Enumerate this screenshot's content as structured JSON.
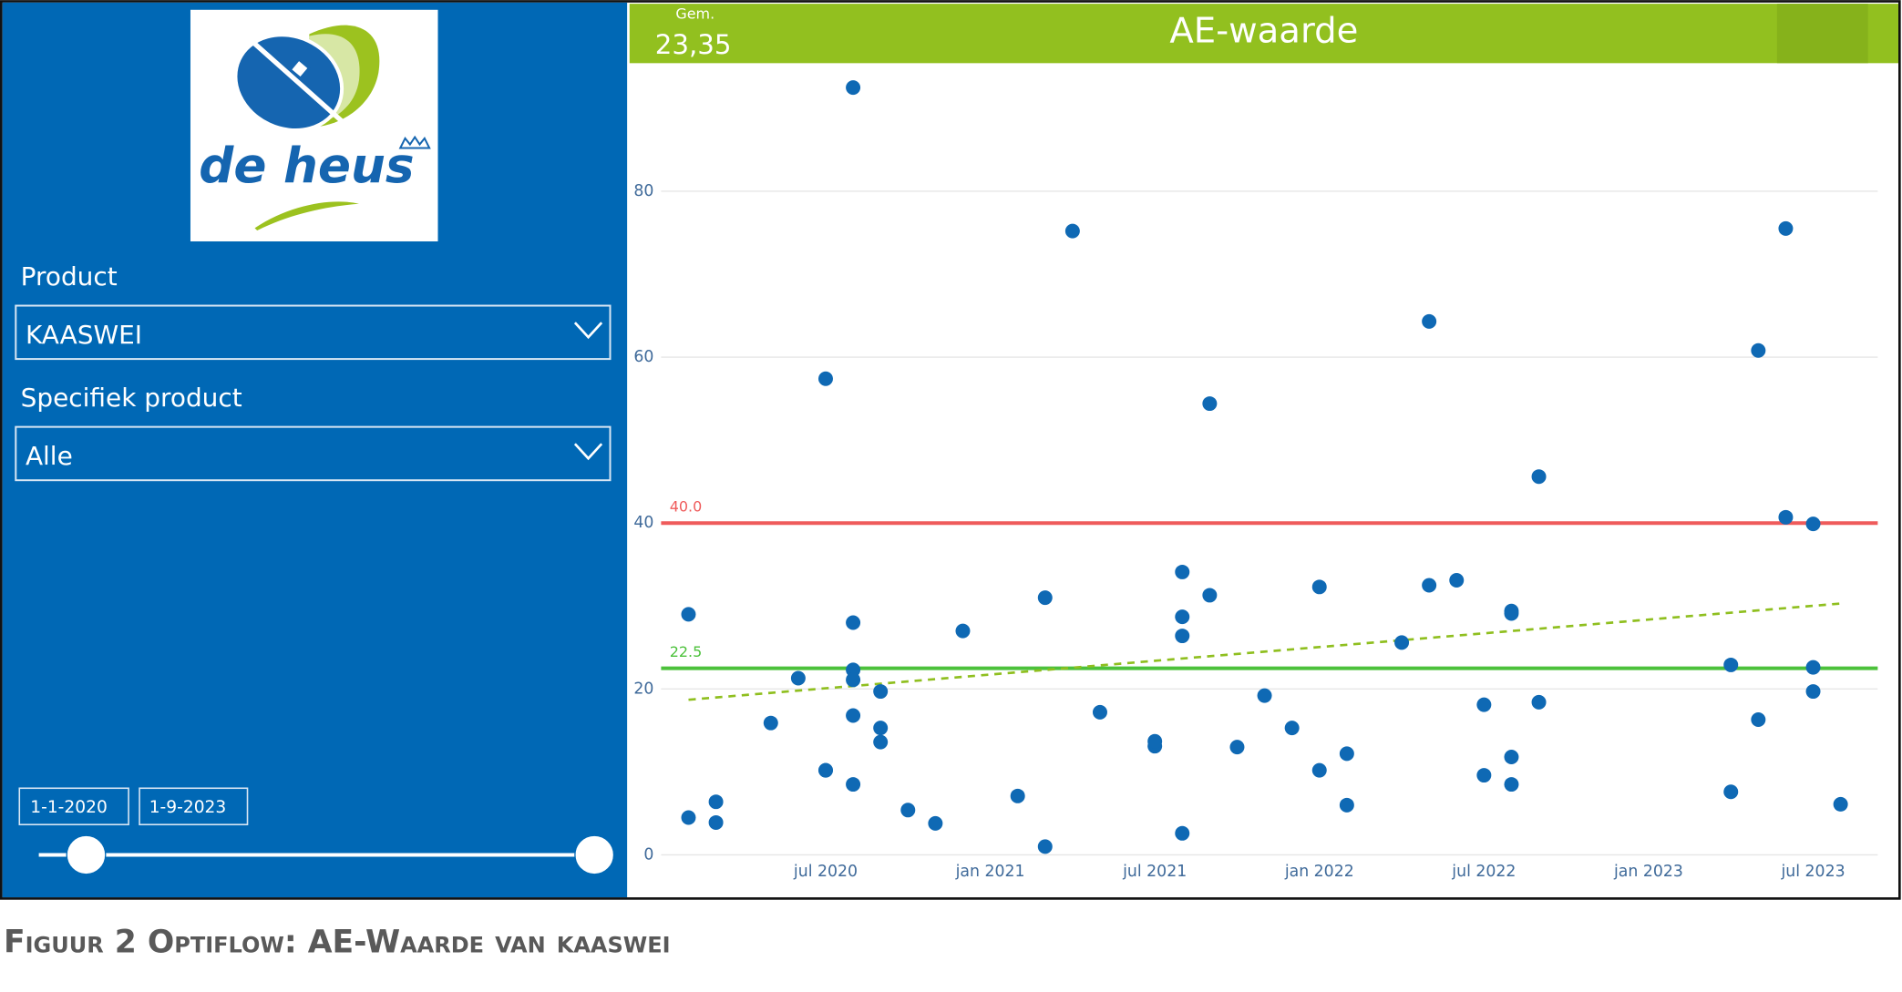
{
  "panel": {
    "logo_text": "de heus",
    "filters": [
      {
        "label": "Product",
        "value": "KAASWEI"
      },
      {
        "label": "Specifiek product",
        "value": "Alle"
      }
    ],
    "date_range": [
      "1-1-2020",
      "1-9-2023"
    ]
  },
  "card": {
    "label": "Gem.",
    "value": "23,35"
  },
  "caption": "Figuur 2 Optiflow: AE-Waarde van kaaswei",
  "chart_data": {
    "type": "scatter",
    "title": "AE-waarde",
    "xlim": [
      "2020-01",
      "2023-09"
    ],
    "xticks": [
      {
        "value": "2020-07",
        "label": "jul 2020"
      },
      {
        "value": "2021-01",
        "label": "jan 2021"
      },
      {
        "value": "2021-07",
        "label": "jul 2021"
      },
      {
        "value": "2022-01",
        "label": "jan 2022"
      },
      {
        "value": "2022-07",
        "label": "jul 2022"
      },
      {
        "value": "2023-01",
        "label": "jan 2023"
      },
      {
        "value": "2023-07",
        "label": "jul 2023"
      }
    ],
    "ylim": [
      0,
      95
    ],
    "yticks": [
      0,
      20,
      40,
      60,
      80
    ],
    "grid": true,
    "series": [
      {
        "color": "#0f69b4",
        "x": [
          "2020-02",
          "2020-02",
          "2020-03",
          "2020-03",
          "2020-05",
          "2020-06",
          "2020-07",
          "2020-07",
          "2020-07",
          "2020-08",
          "2020-08",
          "2020-08",
          "2020-08",
          "2020-08",
          "2020-08",
          "2020-09",
          "2020-09",
          "2020-09",
          "2020-10",
          "2020-11",
          "2020-12",
          "2021-02",
          "2021-03",
          "2021-03",
          "2021-04",
          "2021-05",
          "2021-07",
          "2021-07",
          "2021-08",
          "2021-08",
          "2021-08",
          "2021-08",
          "2021-09",
          "2021-09",
          "2021-10",
          "2021-11",
          "2021-12",
          "2022-01",
          "2022-01",
          "2022-02",
          "2022-02",
          "2022-04",
          "2022-05",
          "2022-05",
          "2022-06",
          "2022-07",
          "2022-07",
          "2022-08",
          "2022-08",
          "2022-08",
          "2022-08",
          "2022-09",
          "2022-09",
          "2023-04",
          "2023-04",
          "2023-05",
          "2023-05",
          "2023-06",
          "2023-06",
          "2023-07",
          "2023-07",
          "2023-07",
          "2023-08"
        ],
        "values": [
          29.0,
          4.5,
          6.4,
          3.9,
          15.9,
          21.3,
          57.4,
          10.2,
          10.2,
          22.3,
          21.1,
          92.5,
          28.0,
          8.5,
          16.8,
          15.3,
          13.6,
          19.7,
          5.4,
          3.8,
          27.0,
          7.1,
          31.0,
          1.0,
          75.2,
          17.2,
          13.1,
          13.7,
          28.7,
          34.1,
          2.6,
          26.4,
          31.3,
          54.4,
          13.0,
          19.2,
          15.3,
          32.3,
          10.2,
          6.0,
          12.2,
          25.6,
          64.3,
          32.5,
          33.1,
          9.6,
          18.1,
          11.8,
          8.5,
          29.4,
          29.1,
          18.4,
          45.6,
          7.6,
          22.9,
          16.3,
          60.8,
          40.7,
          75.5,
          22.6,
          39.9,
          19.7,
          6.1
        ]
      }
    ],
    "reference_lines": [
      {
        "value": 40,
        "label": "40.0",
        "color": "#ef5b5b"
      },
      {
        "value": 22.5,
        "label": "22.5",
        "color": "#4cc13b"
      }
    ],
    "trend_line": {
      "x": [
        "2020-02",
        "2023-08"
      ],
      "values": [
        18.7,
        30.3
      ],
      "color": "#8fbf1f"
    }
  }
}
